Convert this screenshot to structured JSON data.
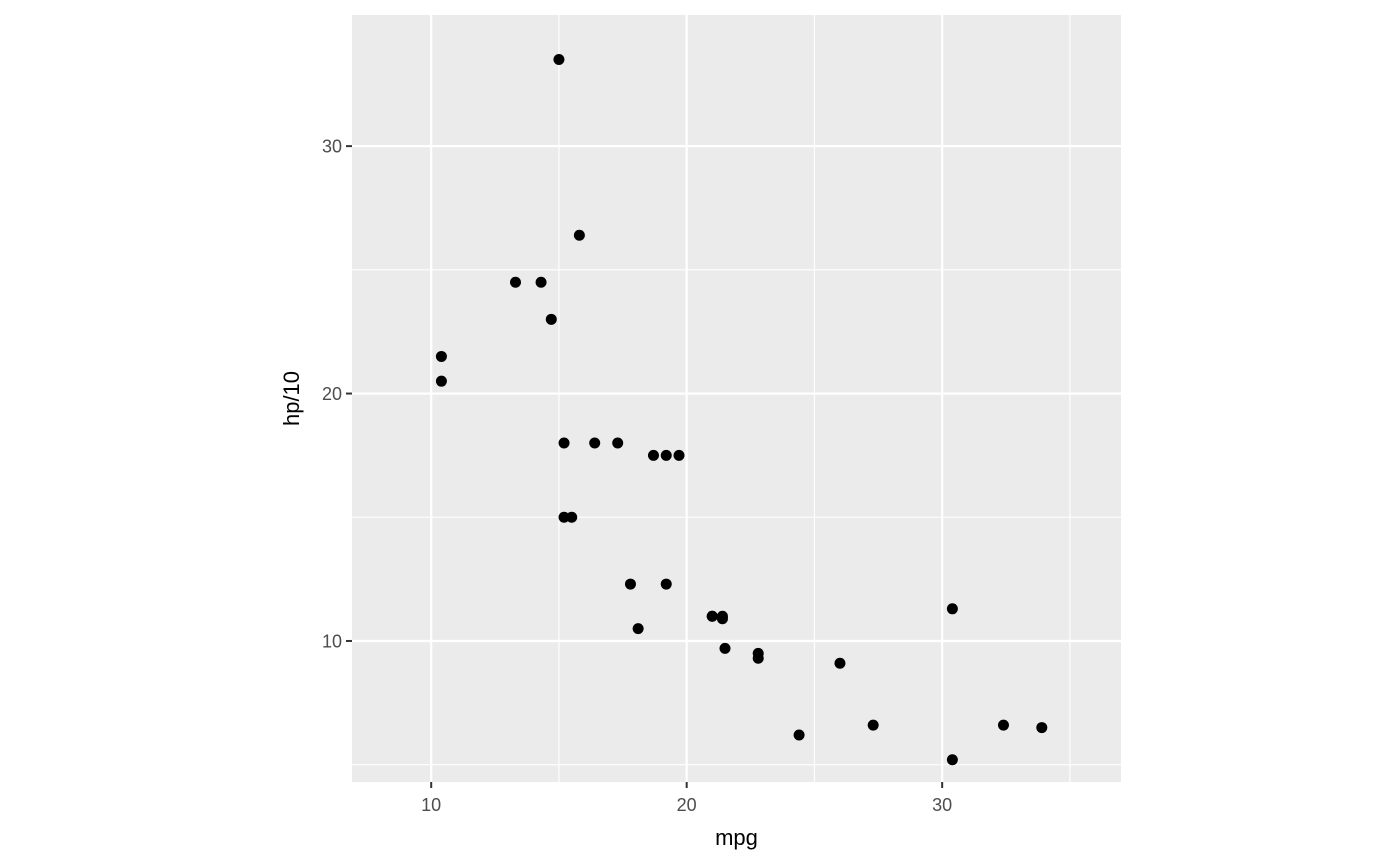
{
  "chart_data": {
    "type": "scatter",
    "xlabel": "mpg",
    "ylabel": "hp/10",
    "xlim": [
      6.9,
      37.0
    ],
    "ylim": [
      4.3,
      35.3
    ],
    "x_ticks": [
      10,
      20,
      30
    ],
    "y_ticks": [
      10,
      20,
      30
    ],
    "x_minor_ticks": [
      15,
      25,
      35
    ],
    "y_minor_ticks": [
      5,
      15,
      25
    ],
    "grid": true,
    "panel_color": "#ebebeb",
    "grid_color": "#ffffff",
    "point_color": "#000000",
    "points": [
      {
        "x": 21.0,
        "y": 11.0
      },
      {
        "x": 21.0,
        "y": 11.0
      },
      {
        "x": 22.8,
        "y": 9.3
      },
      {
        "x": 21.4,
        "y": 11.0
      },
      {
        "x": 18.7,
        "y": 17.5
      },
      {
        "x": 18.1,
        "y": 10.5
      },
      {
        "x": 14.3,
        "y": 24.5
      },
      {
        "x": 24.4,
        "y": 6.2
      },
      {
        "x": 22.8,
        "y": 9.5
      },
      {
        "x": 19.2,
        "y": 12.3
      },
      {
        "x": 17.8,
        "y": 12.3
      },
      {
        "x": 16.4,
        "y": 18.0
      },
      {
        "x": 17.3,
        "y": 18.0
      },
      {
        "x": 15.2,
        "y": 18.0
      },
      {
        "x": 10.4,
        "y": 20.5
      },
      {
        "x": 10.4,
        "y": 21.5
      },
      {
        "x": 14.7,
        "y": 23.0
      },
      {
        "x": 32.4,
        "y": 6.6
      },
      {
        "x": 30.4,
        "y": 5.2
      },
      {
        "x": 33.9,
        "y": 6.5
      },
      {
        "x": 21.5,
        "y": 9.7
      },
      {
        "x": 15.5,
        "y": 15.0
      },
      {
        "x": 15.2,
        "y": 15.0
      },
      {
        "x": 13.3,
        "y": 24.5
      },
      {
        "x": 19.2,
        "y": 17.5
      },
      {
        "x": 27.3,
        "y": 6.6
      },
      {
        "x": 26.0,
        "y": 9.1
      },
      {
        "x": 30.4,
        "y": 11.3
      },
      {
        "x": 15.8,
        "y": 26.4
      },
      {
        "x": 19.7,
        "y": 17.5
      },
      {
        "x": 15.0,
        "y": 33.5
      },
      {
        "x": 21.4,
        "y": 10.9
      }
    ]
  }
}
